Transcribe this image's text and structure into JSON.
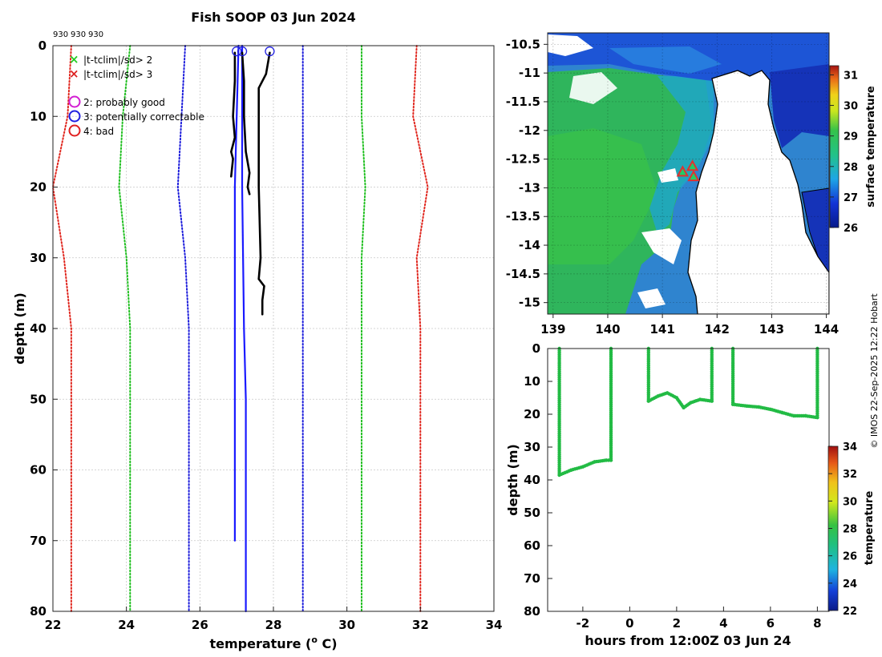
{
  "figure": {
    "title": "Fish SOOP 03 Jun 2024",
    "credit": "© IMOS 22-Sep-2025 12:22 Hobart",
    "profile_ids": [
      "930",
      "930",
      "930"
    ]
  },
  "colors": {
    "clim_2sd": "#1fbf1f",
    "clim_3sd": "#e0261e",
    "clim_1sd": "#1a1adb",
    "mean": "#1a1aff",
    "obs": "#000000",
    "qc_probably_good": "#d21ed2",
    "qc_correctable": "#2020e0",
    "qc_bad": "#e02020",
    "track_points": "#22bb44",
    "marker": "#e03030"
  },
  "legend": {
    "items": [
      {
        "symbol": "×",
        "color": "#22cc22",
        "label": "|t-tclim|/sd> 2"
      },
      {
        "symbol": "×",
        "color": "#dd2222",
        "label": "|t-tclim|/sd> 3"
      },
      {
        "symbol": "○",
        "color": "#d21ed2",
        "label": "2: probably good"
      },
      {
        "symbol": "○",
        "color": "#2020e0",
        "label": "3: potentially correctable"
      },
      {
        "symbol": "○",
        "color": "#e02020",
        "label": "4: bad"
      }
    ]
  },
  "chart_data": [
    {
      "id": "profile",
      "type": "line",
      "xlabel": "temperature (",
      "xlabel_sup": "o",
      "xlabel_tail": " C)",
      "ylabel": "depth (m)",
      "xlim": [
        22,
        34
      ],
      "ylim": [
        0,
        80
      ],
      "xticks": [
        22,
        24,
        26,
        28,
        30,
        32,
        34
      ],
      "yticks": [
        0,
        10,
        20,
        30,
        40,
        50,
        60,
        70,
        80
      ],
      "grid": true,
      "series": [
        {
          "name": "clim -3sd",
          "style": "dotted",
          "color": "#e0261e",
          "points": [
            [
              22.5,
              0
            ],
            [
              22.4,
              10
            ],
            [
              22.0,
              20
            ],
            [
              22.3,
              30
            ],
            [
              22.5,
              40
            ],
            [
              22.5,
              80
            ]
          ]
        },
        {
          "name": "clim -2sd",
          "style": "dotted",
          "color": "#1fbf1f",
          "points": [
            [
              24.1,
              0
            ],
            [
              23.9,
              10
            ],
            [
              23.8,
              20
            ],
            [
              24.0,
              30
            ],
            [
              24.1,
              40
            ],
            [
              24.1,
              80
            ]
          ]
        },
        {
          "name": "clim -1sd",
          "style": "dotted",
          "color": "#1a1adb",
          "points": [
            [
              25.6,
              0
            ],
            [
              25.5,
              10
            ],
            [
              25.4,
              20
            ],
            [
              25.6,
              30
            ],
            [
              25.7,
              40
            ],
            [
              25.7,
              80
            ]
          ]
        },
        {
          "name": "clim +1sd",
          "style": "dotted",
          "color": "#1a1adb",
          "points": [
            [
              28.8,
              0
            ],
            [
              28.8,
              20
            ],
            [
              28.8,
              40
            ],
            [
              28.8,
              80
            ]
          ]
        },
        {
          "name": "clim +2sd",
          "style": "dotted",
          "color": "#1fbf1f",
          "points": [
            [
              30.4,
              0
            ],
            [
              30.4,
              10
            ],
            [
              30.5,
              20
            ],
            [
              30.4,
              30
            ],
            [
              30.4,
              40
            ],
            [
              30.4,
              80
            ]
          ]
        },
        {
          "name": "clim +3sd",
          "style": "dotted",
          "color": "#e0261e",
          "points": [
            [
              31.9,
              0
            ],
            [
              31.8,
              10
            ],
            [
              32.2,
              20
            ],
            [
              31.9,
              30
            ],
            [
              32.0,
              40
            ],
            [
              32.0,
              80
            ]
          ]
        },
        {
          "name": "clim mean A",
          "style": "solid",
          "color": "#1a1aff",
          "points": [
            [
              27.05,
              0
            ],
            [
              27.0,
              10
            ],
            [
              26.95,
              20
            ],
            [
              26.95,
              30
            ],
            [
              26.95,
              40
            ],
            [
              26.95,
              70
            ]
          ]
        },
        {
          "name": "clim mean B",
          "style": "solid",
          "color": "#1a1aff",
          "points": [
            [
              27.15,
              0
            ],
            [
              27.15,
              20
            ],
            [
              27.2,
              40
            ],
            [
              27.25,
              50
            ],
            [
              27.25,
              80
            ]
          ]
        },
        {
          "name": "obs 1",
          "style": "solid",
          "color": "#000000",
          "points": [
            [
              26.95,
              1
            ],
            [
              26.95,
              5
            ],
            [
              26.9,
              10
            ],
            [
              26.95,
              13
            ],
            [
              26.85,
              15
            ],
            [
              26.9,
              16
            ],
            [
              26.85,
              18.5
            ]
          ]
        },
        {
          "name": "obs 2",
          "style": "solid",
          "color": "#000000",
          "points": [
            [
              27.15,
              1
            ],
            [
              27.2,
              5
            ],
            [
              27.2,
              10
            ],
            [
              27.25,
              15
            ],
            [
              27.35,
              18
            ],
            [
              27.3,
              20
            ],
            [
              27.35,
              21
            ]
          ]
        },
        {
          "name": "obs 3",
          "style": "solid",
          "color": "#000000",
          "points": [
            [
              27.9,
              1
            ],
            [
              27.8,
              4
            ],
            [
              27.6,
              6
            ],
            [
              27.6,
              10
            ],
            [
              27.6,
              20
            ],
            [
              27.65,
              30
            ],
            [
              27.6,
              33
            ],
            [
              27.75,
              34
            ],
            [
              27.7,
              36
            ],
            [
              27.7,
              38
            ]
          ]
        }
      ],
      "qc_markers": [
        {
          "x": 27.0,
          "y": 0.8,
          "color": "#2020e0"
        },
        {
          "x": 27.15,
          "y": 0.8,
          "color": "#2020e0"
        },
        {
          "x": 27.9,
          "y": 0.8,
          "color": "#2020e0"
        }
      ]
    },
    {
      "id": "map",
      "type": "heatmap",
      "xlim": [
        138.9,
        144.05
      ],
      "ylim": [
        -15.2,
        -10.3
      ],
      "xticks": [
        139,
        140,
        141,
        142,
        143,
        144
      ],
      "yticks": [
        -10.5,
        -11,
        -11.5,
        -12,
        -12.5,
        -13,
        -13.5,
        -14,
        -14.5,
        -15
      ],
      "colorbar": {
        "label": "surface temperature",
        "min": 26,
        "max": 31.3,
        "ticks": [
          26,
          27,
          28,
          29,
          30,
          31
        ]
      },
      "stations": [
        {
          "lon": 141.55,
          "lat": -12.62
        },
        {
          "lon": 141.37,
          "lat": -12.72
        },
        {
          "lon": 141.57,
          "lat": -12.8
        }
      ]
    },
    {
      "id": "track",
      "type": "scatter",
      "xlabel": "hours from 12:00Z 03 Jun 24",
      "ylabel": "depth (m)",
      "xlim": [
        -3.5,
        8.5
      ],
      "ylim": [
        0,
        80
      ],
      "xticks": [
        -2,
        0,
        2,
        4,
        6,
        8
      ],
      "yticks": [
        0,
        10,
        20,
        30,
        40,
        50,
        60,
        70,
        80
      ],
      "colorbar": {
        "label": "temperature",
        "min": 22,
        "max": 34,
        "ticks": [
          22,
          24,
          26,
          28,
          30,
          32,
          34
        ]
      },
      "segments": [
        [
          [
            -3.0,
            0
          ],
          [
            -3.0,
            38.5
          ]
        ],
        [
          [
            -3.0,
            38.5
          ],
          [
            -2.5,
            37
          ],
          [
            -2.0,
            36
          ],
          [
            -1.5,
            34.5
          ],
          [
            -1.0,
            34
          ],
          [
            -0.8,
            34
          ]
        ],
        [
          [
            -0.8,
            34
          ],
          [
            -0.8,
            0
          ]
        ],
        [
          [
            0.8,
            0
          ],
          [
            0.8,
            16
          ]
        ],
        [
          [
            0.8,
            16
          ],
          [
            1.2,
            14.5
          ],
          [
            1.6,
            13.5
          ],
          [
            2.0,
            15
          ],
          [
            2.3,
            18
          ],
          [
            2.6,
            16.5
          ],
          [
            3.0,
            15.5
          ],
          [
            3.5,
            16
          ]
        ],
        [
          [
            3.5,
            16
          ],
          [
            3.5,
            0
          ]
        ],
        [
          [
            4.4,
            0
          ],
          [
            4.4,
            17
          ]
        ],
        [
          [
            4.4,
            17
          ],
          [
            5.0,
            17.5
          ],
          [
            5.5,
            17.8
          ],
          [
            6.0,
            18.5
          ],
          [
            6.5,
            19.5
          ],
          [
            7.0,
            20.5
          ],
          [
            7.5,
            20.5
          ],
          [
            8.0,
            21
          ]
        ],
        [
          [
            8.0,
            21
          ],
          [
            8.0,
            0
          ]
        ]
      ]
    }
  ]
}
